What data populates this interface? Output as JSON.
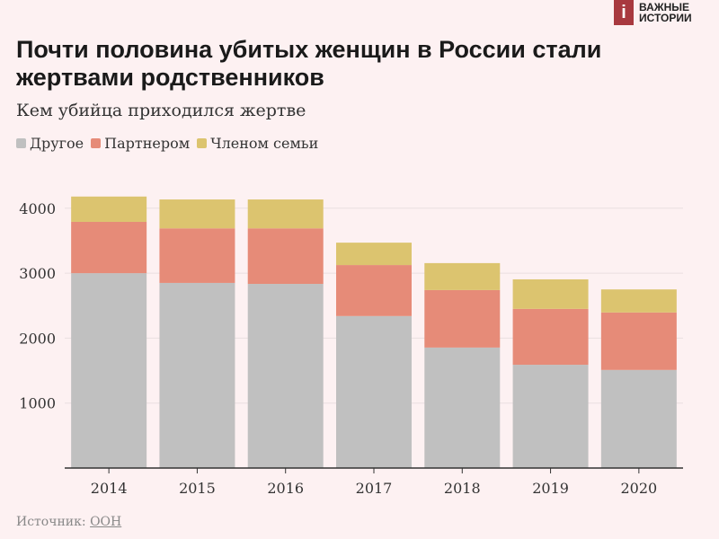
{
  "logo": {
    "icon": "i",
    "line1": "ВАЖНЫЕ",
    "line2": "ИСТОРИИ"
  },
  "chart_data": {
    "type": "bar",
    "stacked": true,
    "title": "Почти половина убитых женщин в России стали жертвами родственников",
    "subtitle": "Кем убийца приходился жертве",
    "categories": [
      "2014",
      "2015",
      "2016",
      "2017",
      "2018",
      "2019",
      "2020"
    ],
    "series": [
      {
        "name": "Другое",
        "color": "#c0c0c0",
        "values": [
          3000,
          2850,
          2835,
          2340,
          1855,
          1590,
          1510
        ]
      },
      {
        "name": "Партнером",
        "color": "#e68b78",
        "values": [
          790,
          840,
          855,
          785,
          885,
          860,
          885
        ]
      },
      {
        "name": "Членом семьи",
        "color": "#dcc46f",
        "values": [
          390,
          445,
          445,
          345,
          415,
          455,
          355
        ]
      }
    ],
    "yticks": [
      1000,
      2000,
      3000,
      4000
    ],
    "ylim": [
      0,
      4300
    ],
    "legend": "top-left",
    "grid": true
  },
  "source": {
    "label": "Источник:",
    "link": "ООН"
  }
}
